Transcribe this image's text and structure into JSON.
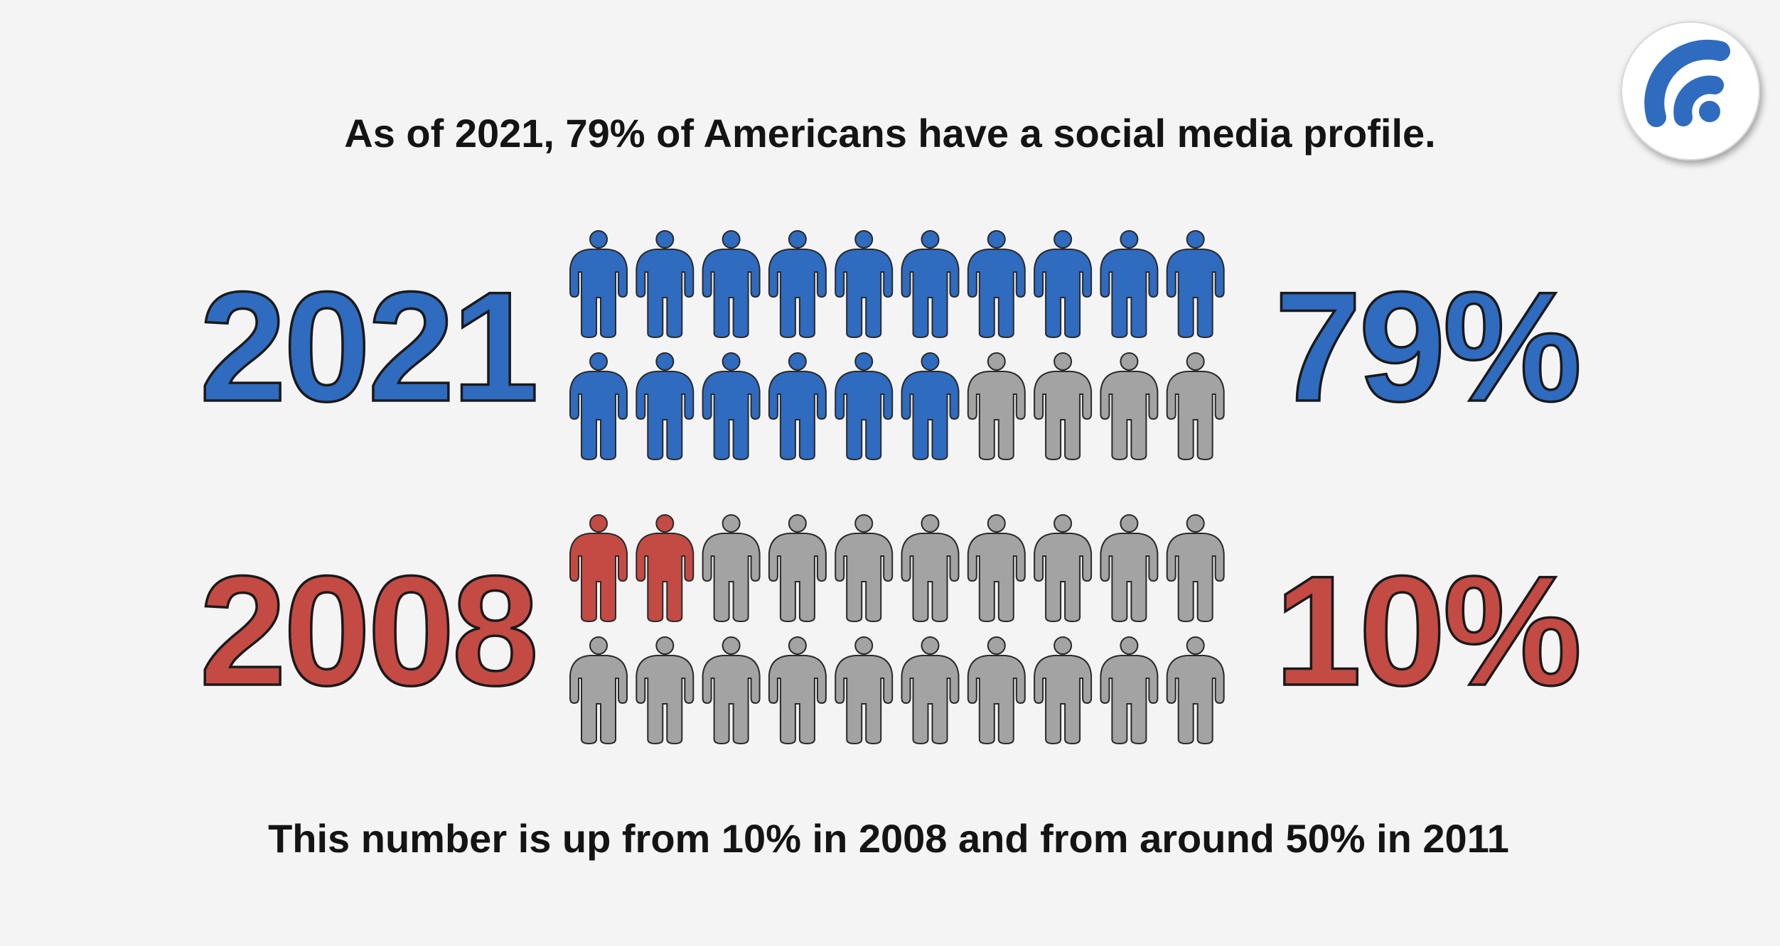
{
  "chart_data": {
    "type": "pictograph",
    "title": "As of 2021, 79% of Americans have a social media profile.",
    "series": [
      {
        "name": "2021",
        "color": "#2f6bbf",
        "values": [
          79
        ],
        "value_labels": [
          "79%"
        ]
      },
      {
        "name": "2008",
        "color": "#c44a44",
        "values": [
          10
        ],
        "value_labels": [
          "10%"
        ]
      }
    ],
    "caption": "This number is up from 10% in 2008 and from around 50% in 2011"
  }
}
